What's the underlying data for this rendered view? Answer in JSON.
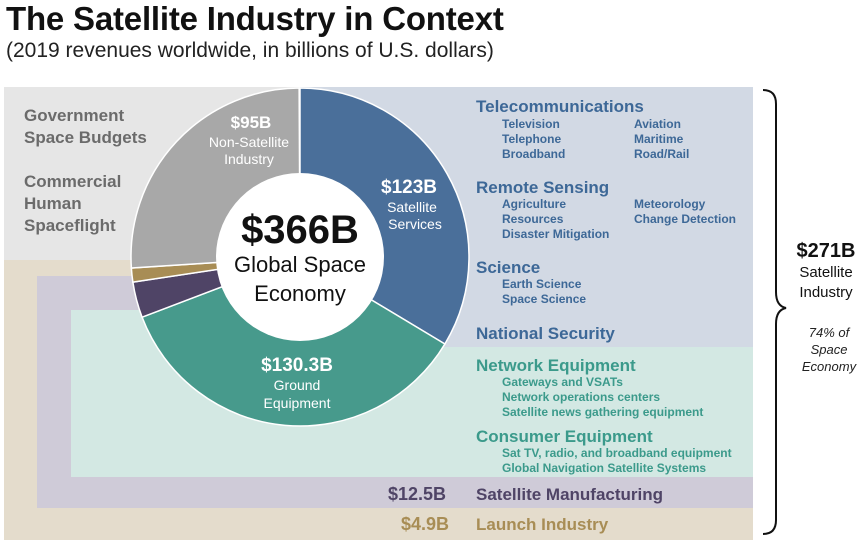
{
  "title": "The Satellite Industry in Context",
  "subtitle": "(2019 revenues worldwide, in billions of U.S. dollars)",
  "left_labels": {
    "government": [
      "Government",
      "Space Budgets"
    ],
    "commercial": [
      "Commercial",
      "Human",
      "Spaceflight"
    ]
  },
  "categories": {
    "telecom": {
      "head": "Telecommunications",
      "col1": [
        "Television",
        "Telephone",
        "Broadband"
      ],
      "col2": [
        "Aviation",
        "Maritime",
        "Road/Rail"
      ]
    },
    "remote": {
      "head": "Remote Sensing",
      "col1": [
        "Agriculture",
        "Resources",
        "Disaster Mitigation"
      ],
      "col2": [
        "Meteorology",
        "Change Detection"
      ]
    },
    "science": {
      "head": "Science",
      "col1": [
        "Earth Science",
        "Space Science"
      ]
    },
    "security": {
      "head": "National Security"
    },
    "network": {
      "head": "Network Equipment",
      "items": [
        "Gateways and VSATs",
        "Network operations centers",
        "Satellite news gathering equipment"
      ]
    },
    "consumer": {
      "head": "Consumer Equipment",
      "items": [
        "Sat TV, radio, and broadband equipment",
        "Global Navigation Satellite Systems"
      ]
    }
  },
  "bands": {
    "manufacturing": {
      "value": "$12.5B",
      "label": "Satellite Manufacturing"
    },
    "launch": {
      "value": "$4.9B",
      "label": "Launch Industry"
    }
  },
  "brace": {
    "value": "$271B",
    "label": [
      "Satellite",
      "Industry"
    ],
    "note": [
      "74% of",
      "Space",
      "Economy"
    ]
  },
  "colors": {
    "services": "#4a6f9a",
    "ground": "#479a8c",
    "nonsat": "#a8a8a8",
    "manufacturing": "#4f4466",
    "launch": "#a88d55",
    "services_bg": "#d2d9e4",
    "ground_bg": "#d3e8e3",
    "nonsat_bg": "#e6e6e6",
    "manufacturing_bg": "#cfcbd8",
    "launch_bg": "#e4dccc"
  },
  "chart_data": {
    "type": "pie",
    "title": "The Satellite Industry in Context",
    "subtitle": "(2019 revenues worldwide, in billions of U.S. dollars)",
    "center": {
      "value": "$366B",
      "label": [
        "Global Space",
        "Economy"
      ]
    },
    "total": 366,
    "slices": [
      {
        "key": "services",
        "value": 123,
        "value_label": "$123B",
        "label": [
          "Satellite",
          "Services"
        ]
      },
      {
        "key": "ground",
        "value": 130.3,
        "value_label": "$130.3B",
        "label": [
          "Ground",
          "Equipment"
        ]
      },
      {
        "key": "manufacturing",
        "value": 12.5,
        "value_label": "$12.5B"
      },
      {
        "key": "launch",
        "value": 4.9,
        "value_label": "$4.9B"
      },
      {
        "key": "nonsat",
        "value": 95,
        "value_label": "$95B",
        "label": [
          "Non-Satellite",
          "Industry"
        ]
      }
    ]
  }
}
